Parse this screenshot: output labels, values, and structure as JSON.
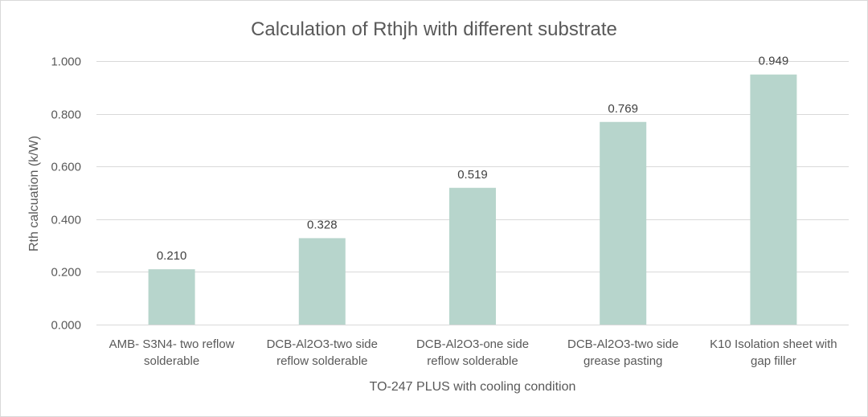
{
  "chart_data": {
    "type": "bar",
    "title": "Calculation of Rthjh with different substrate",
    "xlabel": "TO-247 PLUS with cooling condition",
    "ylabel": "Rth calcuation (k/W)",
    "ylim": [
      0,
      1
    ],
    "ytick_values": [
      0,
      0.2,
      0.4,
      0.6,
      0.8,
      1.0
    ],
    "ytick_labels": [
      "0.000",
      "0.200",
      "0.400",
      "0.600",
      "0.800",
      "1.000"
    ],
    "grid": true,
    "categories": [
      [
        "AMB- S3N4- two reflow",
        "solderable"
      ],
      [
        "DCB-Al2O3-two side",
        "reflow solderable"
      ],
      [
        "DCB-Al2O3-one side",
        "reflow solderable"
      ],
      [
        "DCB-Al2O3-two side",
        "grease pasting"
      ],
      [
        "K10 Isolation sheet with",
        "gap filler"
      ]
    ],
    "values": [
      0.21,
      0.328,
      0.519,
      0.769,
      0.949
    ],
    "data_labels": [
      "0.210",
      "0.328",
      "0.519",
      "0.769",
      "0.949"
    ],
    "bar_color": "#b7d5cc",
    "gridline_color": "#d9d9d9",
    "text_color": "#595959"
  }
}
